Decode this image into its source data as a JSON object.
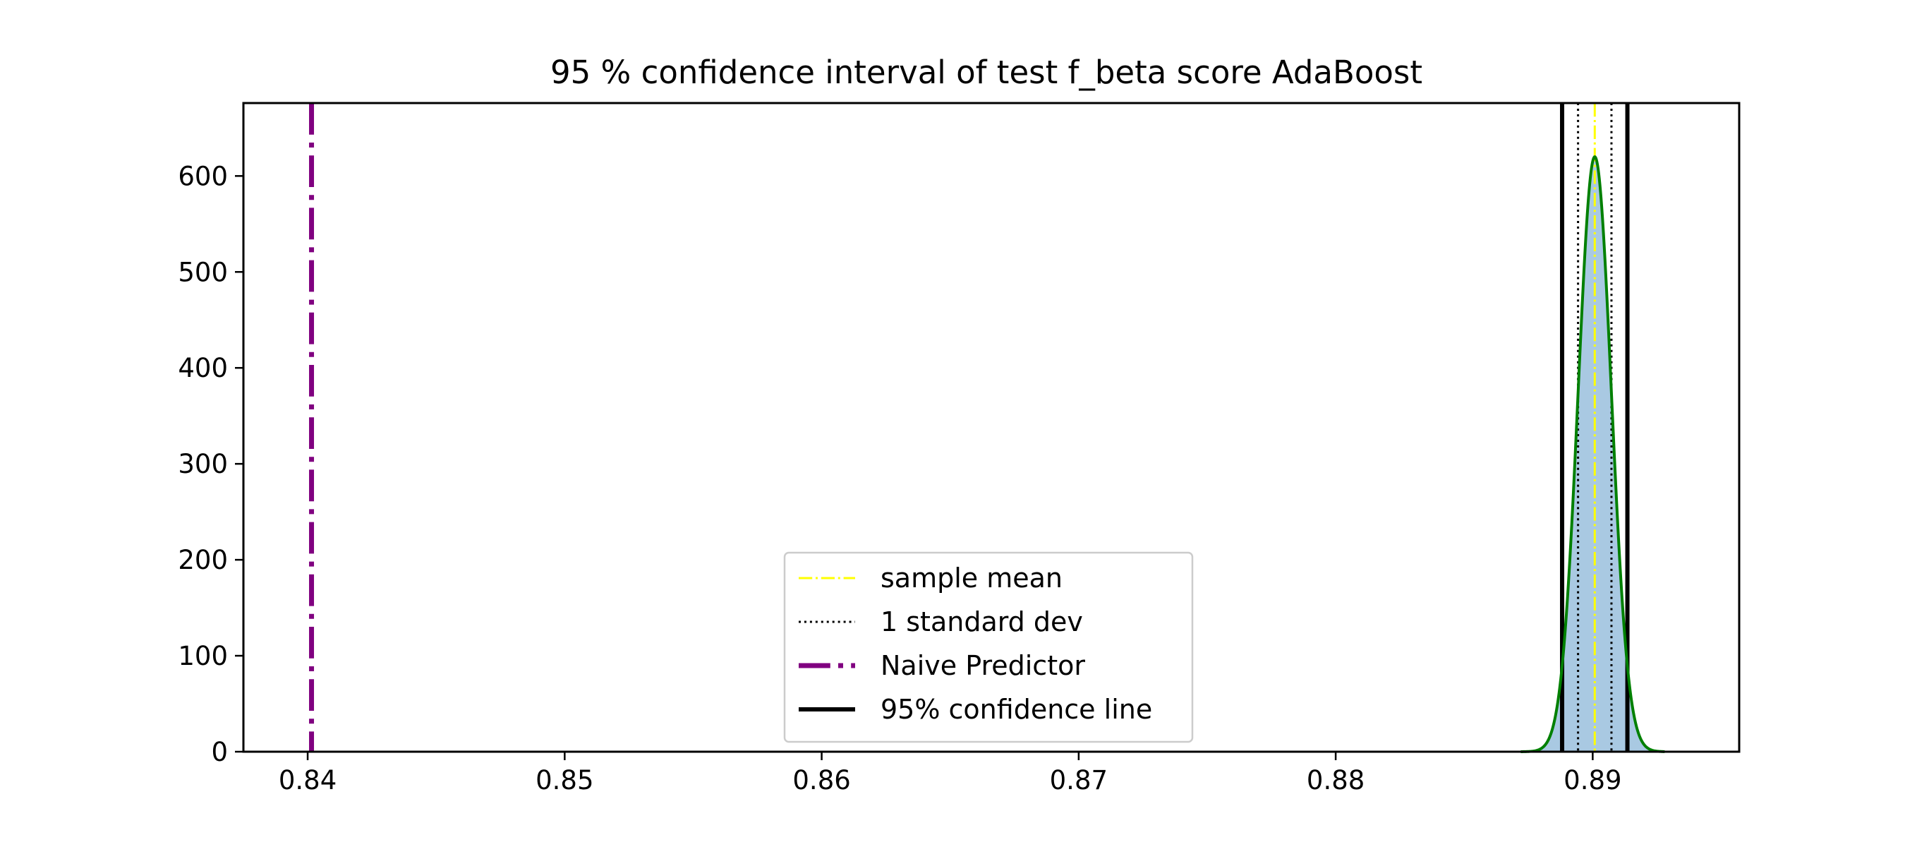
{
  "chart_data": {
    "type": "area",
    "title": "95 % confidence interval of test f_beta score AdaBoost",
    "xlabel": "",
    "ylabel": "",
    "xlim": [
      0.8375,
      0.8957
    ],
    "ylim": [
      0,
      676
    ],
    "x_ticks": [
      0.84,
      0.85,
      0.86,
      0.87,
      0.88,
      0.89
    ],
    "x_tick_labels": [
      "0.84",
      "0.85",
      "0.86",
      "0.87",
      "0.88",
      "0.89"
    ],
    "y_ticks": [
      0,
      100,
      200,
      300,
      400,
      500,
      600
    ],
    "y_tick_labels": [
      "0",
      "100",
      "200",
      "300",
      "400",
      "500",
      "600"
    ],
    "grid": false,
    "legend_position": "lower center",
    "distribution": {
      "mean": 0.89008,
      "std": 0.000645,
      "peak": 620,
      "x_min": 0.8872,
      "x_max": 0.8928,
      "hist_fill_color": "#A9C9E2",
      "kde_color": "#008000"
    },
    "vlines": [
      {
        "name": "sample mean",
        "x": 0.89008,
        "color": "#FFFF00",
        "style": "dashdot"
      },
      {
        "name": "1 standard dev",
        "x": 0.88943,
        "color": "#000000",
        "style": "dotted"
      },
      {
        "name": "1 standard dev",
        "x": 0.89073,
        "color": "#000000",
        "style": "dotted"
      },
      {
        "name": "Naive Predictor",
        "x": 0.84015,
        "color": "#800080",
        "style": "dashdot"
      },
      {
        "name": "95% confidence line",
        "x": 0.88881,
        "color": "#000000",
        "style": "solid"
      },
      {
        "name": "95% confidence line",
        "x": 0.89135,
        "color": "#000000",
        "style": "solid"
      }
    ],
    "legend": [
      {
        "label": "sample mean",
        "color": "#FFFF00",
        "style": "dashdot"
      },
      {
        "label": "1 standard dev",
        "color": "#000000",
        "style": "dotted"
      },
      {
        "label": "Naive Predictor",
        "color": "#800080",
        "style": "dashdot"
      },
      {
        "label": "95% confidence line",
        "color": "#000000",
        "style": "solid"
      }
    ]
  }
}
